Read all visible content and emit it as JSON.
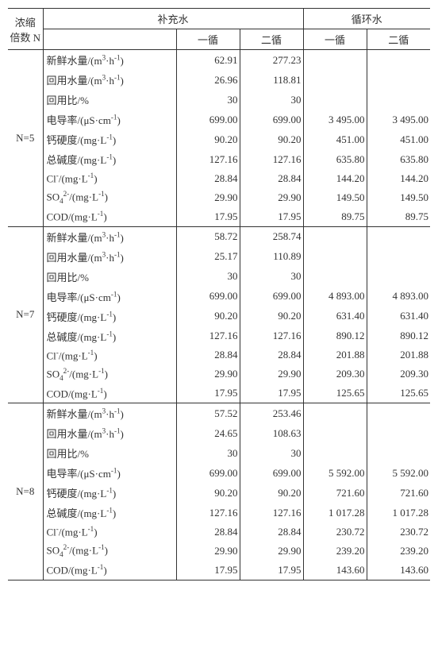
{
  "header": {
    "corner_l1": "浓缩",
    "corner_l2": "倍数 N",
    "supply": "补充水",
    "circ": "循环水",
    "c1": "一循",
    "c2": "二循"
  },
  "param_labels": {
    "fresh": "新鲜水量/(m³·h⁻¹)",
    "reuse": "回用水量/(m³·h⁻¹)",
    "ratio": "回用比/%",
    "cond": "电导率/(μS·cm⁻¹)",
    "ca": "钙硬度/(mg·L⁻¹)",
    "alk": "总碱度/(mg·L⁻¹)",
    "cl": "Cl⁻/(mg·L⁻¹)",
    "so4": "SO₄²⁻/(mg·L⁻¹)",
    "cod": "COD/(mg·L⁻¹)"
  },
  "groups": [
    {
      "n_label": "N=5",
      "rows": [
        {
          "key": "fresh",
          "s1": "62.91",
          "s2": "277.23",
          "c1": "",
          "c2": ""
        },
        {
          "key": "reuse",
          "s1": "26.96",
          "s2": "118.81",
          "c1": "",
          "c2": ""
        },
        {
          "key": "ratio",
          "s1": "30",
          "s2": "30",
          "c1": "",
          "c2": ""
        },
        {
          "key": "cond",
          "s1": "699.00",
          "s2": "699.00",
          "c1": "3 495.00",
          "c2": "3 495.00"
        },
        {
          "key": "ca",
          "s1": "90.20",
          "s2": "90.20",
          "c1": "451.00",
          "c2": "451.00"
        },
        {
          "key": "alk",
          "s1": "127.16",
          "s2": "127.16",
          "c1": "635.80",
          "c2": "635.80"
        },
        {
          "key": "cl",
          "s1": "28.84",
          "s2": "28.84",
          "c1": "144.20",
          "c2": "144.20"
        },
        {
          "key": "so4",
          "s1": "29.90",
          "s2": "29.90",
          "c1": "149.50",
          "c2": "149.50"
        },
        {
          "key": "cod",
          "s1": "17.95",
          "s2": "17.95",
          "c1": "89.75",
          "c2": "89.75"
        }
      ]
    },
    {
      "n_label": "N=7",
      "rows": [
        {
          "key": "fresh",
          "s1": "58.72",
          "s2": "258.74",
          "c1": "",
          "c2": ""
        },
        {
          "key": "reuse",
          "s1": "25.17",
          "s2": "110.89",
          "c1": "",
          "c2": ""
        },
        {
          "key": "ratio",
          "s1": "30",
          "s2": "30",
          "c1": "",
          "c2": ""
        },
        {
          "key": "cond",
          "s1": "699.00",
          "s2": "699.00",
          "c1": "4 893.00",
          "c2": "4 893.00"
        },
        {
          "key": "ca",
          "s1": "90.20",
          "s2": "90.20",
          "c1": "631.40",
          "c2": "631.40"
        },
        {
          "key": "alk",
          "s1": "127.16",
          "s2": "127.16",
          "c1": "890.12",
          "c2": "890.12"
        },
        {
          "key": "cl",
          "s1": "28.84",
          "s2": "28.84",
          "c1": "201.88",
          "c2": "201.88"
        },
        {
          "key": "so4",
          "s1": "29.90",
          "s2": "29.90",
          "c1": "209.30",
          "c2": "209.30"
        },
        {
          "key": "cod",
          "s1": "17.95",
          "s2": "17.95",
          "c1": "125.65",
          "c2": "125.65"
        }
      ]
    },
    {
      "n_label": "N=8",
      "rows": [
        {
          "key": "fresh",
          "s1": "57.52",
          "s2": "253.46",
          "c1": "",
          "c2": ""
        },
        {
          "key": "reuse",
          "s1": "24.65",
          "s2": "108.63",
          "c1": "",
          "c2": ""
        },
        {
          "key": "ratio",
          "s1": "30",
          "s2": "30",
          "c1": "",
          "c2": ""
        },
        {
          "key": "cond",
          "s1": "699.00",
          "s2": "699.00",
          "c1": "5 592.00",
          "c2": "5 592.00"
        },
        {
          "key": "ca",
          "s1": "90.20",
          "s2": "90.20",
          "c1": "721.60",
          "c2": "721.60"
        },
        {
          "key": "alk",
          "s1": "127.16",
          "s2": "127.16",
          "c1": "1 017.28",
          "c2": "1 017.28"
        },
        {
          "key": "cl",
          "s1": "28.84",
          "s2": "28.84",
          "c1": "230.72",
          "c2": "230.72"
        },
        {
          "key": "so4",
          "s1": "29.90",
          "s2": "29.90",
          "c1": "239.20",
          "c2": "239.20"
        },
        {
          "key": "cod",
          "s1": "17.95",
          "s2": "17.95",
          "c1": "143.60",
          "c2": "143.60"
        }
      ]
    }
  ]
}
